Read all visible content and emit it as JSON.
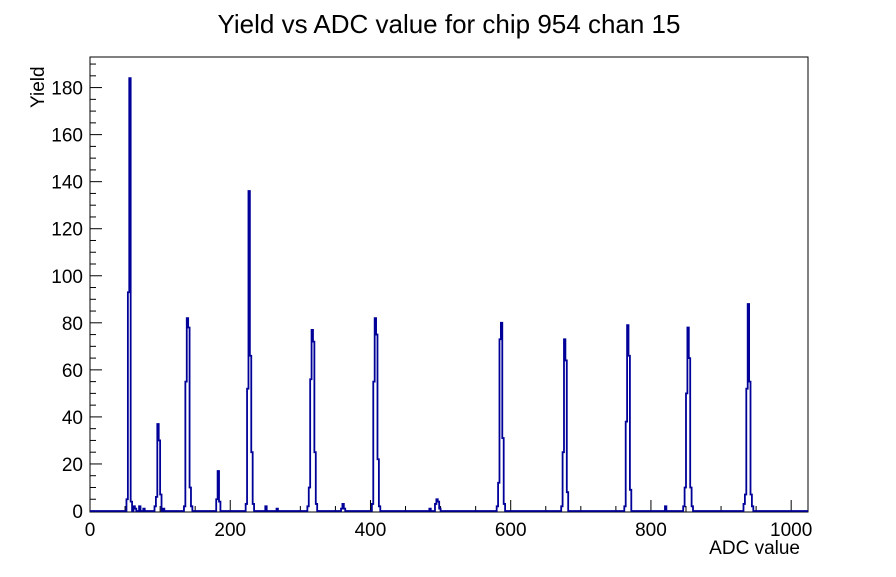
{
  "chart_data": {
    "type": "histogram",
    "title": "Yield vs ADC value for chip 954 chan 15",
    "xlabel": "ADC value",
    "ylabel": "Yield",
    "xlim": [
      0,
      1024
    ],
    "ylim": [
      0,
      193
    ],
    "x_major_ticks": [
      0,
      200,
      400,
      600,
      800,
      1000
    ],
    "x_minor_step": 50,
    "y_major_ticks": [
      0,
      20,
      40,
      60,
      80,
      100,
      120,
      140,
      160,
      180
    ],
    "y_minor_step": 5,
    "grid": false,
    "legend": "none",
    "line_color": "#000099",
    "axis_color": "#000000",
    "background_color": "#ffffff",
    "bin_width": 2,
    "bins": [
      [
        52,
        5
      ],
      [
        54,
        93
      ],
      [
        56,
        184
      ],
      [
        58,
        4
      ],
      [
        62,
        2
      ],
      [
        64,
        1
      ],
      [
        70,
        2
      ],
      [
        76,
        1
      ],
      [
        92,
        2
      ],
      [
        94,
        6
      ],
      [
        96,
        37
      ],
      [
        98,
        30
      ],
      [
        100,
        7
      ],
      [
        104,
        1
      ],
      [
        134,
        2
      ],
      [
        136,
        55
      ],
      [
        138,
        82
      ],
      [
        140,
        78
      ],
      [
        142,
        10
      ],
      [
        144,
        2
      ],
      [
        180,
        5
      ],
      [
        182,
        17
      ],
      [
        184,
        4
      ],
      [
        222,
        3
      ],
      [
        224,
        52
      ],
      [
        226,
        136
      ],
      [
        228,
        66
      ],
      [
        230,
        25
      ],
      [
        232,
        3
      ],
      [
        250,
        2
      ],
      [
        266,
        1
      ],
      [
        310,
        2
      ],
      [
        312,
        10
      ],
      [
        314,
        56
      ],
      [
        316,
        77
      ],
      [
        318,
        72
      ],
      [
        320,
        25
      ],
      [
        322,
        3
      ],
      [
        358,
        1
      ],
      [
        360,
        3
      ],
      [
        362,
        1
      ],
      [
        402,
        3
      ],
      [
        404,
        55
      ],
      [
        406,
        82
      ],
      [
        408,
        75
      ],
      [
        410,
        22
      ],
      [
        412,
        2
      ],
      [
        484,
        1
      ],
      [
        492,
        3
      ],
      [
        494,
        5
      ],
      [
        496,
        4
      ],
      [
        498,
        1
      ],
      [
        580,
        2
      ],
      [
        582,
        12
      ],
      [
        584,
        73
      ],
      [
        586,
        80
      ],
      [
        588,
        31
      ],
      [
        590,
        3
      ],
      [
        672,
        2
      ],
      [
        674,
        25
      ],
      [
        676,
        73
      ],
      [
        678,
        64
      ],
      [
        680,
        8
      ],
      [
        762,
        2
      ],
      [
        764,
        38
      ],
      [
        766,
        79
      ],
      [
        768,
        66
      ],
      [
        770,
        9
      ],
      [
        820,
        2
      ],
      [
        846,
        2
      ],
      [
        848,
        10
      ],
      [
        850,
        50
      ],
      [
        852,
        78
      ],
      [
        854,
        65
      ],
      [
        856,
        10
      ],
      [
        858,
        2
      ],
      [
        932,
        3
      ],
      [
        934,
        7
      ],
      [
        936,
        52
      ],
      [
        938,
        88
      ],
      [
        940,
        55
      ],
      [
        942,
        7
      ],
      [
        944,
        2
      ]
    ]
  }
}
